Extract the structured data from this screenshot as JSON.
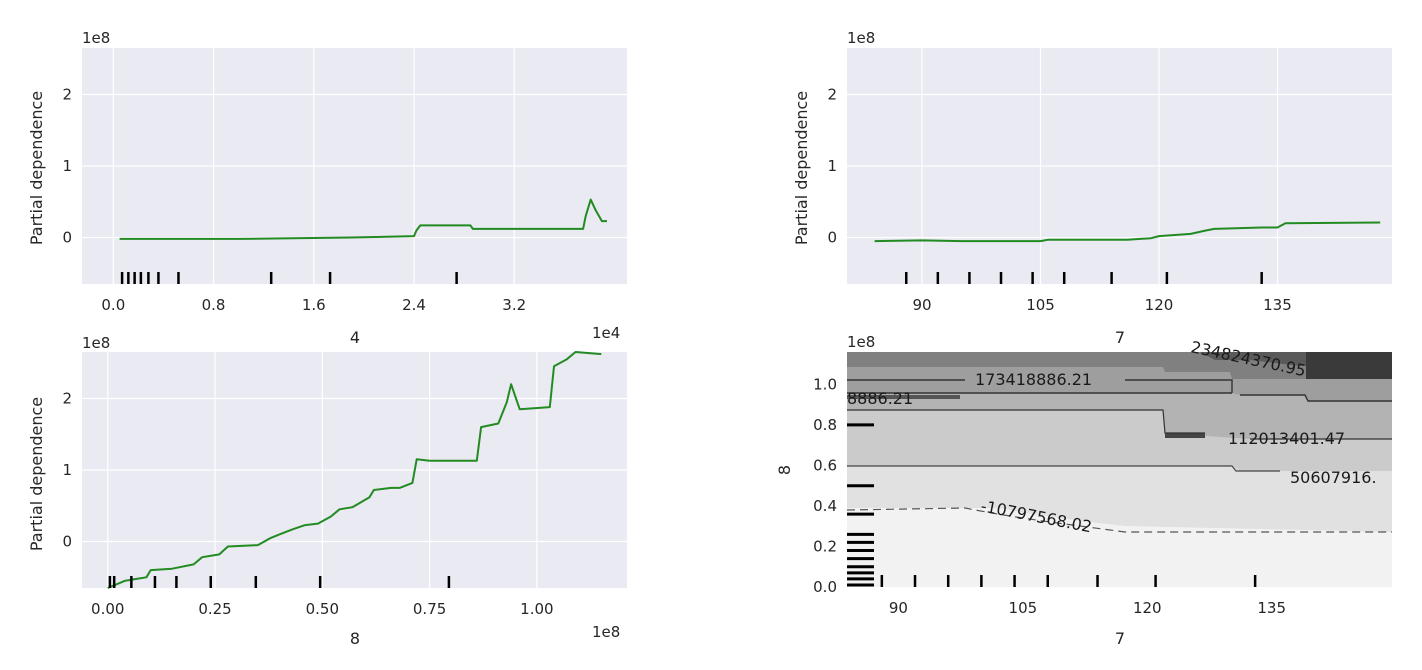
{
  "chart_data": [
    {
      "type": "line",
      "xlabel": "4",
      "ylabel": "Partial dependence",
      "x_multiplier": "1e4",
      "y_multiplier": "1e8",
      "xlim": [
        -0.25,
        4.1
      ],
      "ylim": [
        -0.65,
        2.65
      ],
      "xticks": [
        0.0,
        0.8,
        1.6,
        2.4,
        3.2
      ],
      "xtick_labels": [
        "0.0",
        "0.8",
        "1.6",
        "2.4",
        "3.2"
      ],
      "yticks": [
        0,
        1,
        2
      ],
      "ytick_labels": [
        "0",
        "1",
        "2"
      ],
      "rug": [
        0.07,
        0.12,
        0.17,
        0.22,
        0.28,
        0.36,
        0.52,
        1.26,
        1.73,
        2.74
      ],
      "series": [
        {
          "color": "#228b22",
          "x": [
            0.05,
            1.0,
            1.9,
            2.4,
            2.42,
            2.45,
            2.53,
            2.85,
            2.87,
            3.25,
            3.5,
            3.75,
            3.77,
            3.81,
            3.85,
            3.9,
            3.94
          ],
          "y": [
            -0.02,
            -0.02,
            0.0,
            0.02,
            0.1,
            0.17,
            0.17,
            0.17,
            0.12,
            0.12,
            0.12,
            0.12,
            0.3,
            0.53,
            0.38,
            0.23,
            0.23
          ]
        }
      ],
      "grid": true
    },
    {
      "type": "line",
      "xlabel": "7",
      "ylabel": "Partial dependence",
      "y_multiplier": "1e8",
      "xlim": [
        80.5,
        149.5
      ],
      "ylim": [
        -0.65,
        2.65
      ],
      "xticks": [
        90,
        105,
        120,
        135
      ],
      "xtick_labels": [
        "90",
        "105",
        "120",
        "135"
      ],
      "yticks": [
        0,
        1,
        2
      ],
      "ytick_labels": [
        "0",
        "1",
        "2"
      ],
      "rug": [
        88,
        92,
        96,
        100,
        104,
        108,
        114,
        121,
        133
      ],
      "series": [
        {
          "color": "#228b22",
          "x": [
            84,
            90,
            95,
            105,
            106,
            116,
            119,
            120,
            124,
            126,
            127,
            133,
            135,
            136,
            148
          ],
          "y": [
            -0.05,
            -0.04,
            -0.05,
            -0.05,
            -0.03,
            -0.03,
            -0.01,
            0.02,
            0.05,
            0.1,
            0.12,
            0.14,
            0.14,
            0.2,
            0.21
          ]
        }
      ],
      "grid": true
    },
    {
      "type": "line",
      "xlabel": "8",
      "ylabel": "Partial dependence",
      "x_multiplier": "1e8",
      "y_multiplier": "1e8",
      "xlim": [
        -0.06,
        1.21
      ],
      "ylim": [
        -0.65,
        2.65
      ],
      "xticks": [
        0.0,
        0.25,
        0.5,
        0.75,
        1.0
      ],
      "xtick_labels": [
        "0.00",
        "0.25",
        "0.50",
        "0.75",
        "1.00"
      ],
      "yticks": [
        0,
        1,
        2
      ],
      "ytick_labels": [
        "0",
        "1",
        "2"
      ],
      "rug": [
        0.005,
        0.015,
        0.055,
        0.11,
        0.16,
        0.24,
        0.345,
        0.495,
        0.795
      ],
      "series": [
        {
          "color": "#228b22",
          "x": [
            0.0,
            0.04,
            0.06,
            0.09,
            0.1,
            0.15,
            0.2,
            0.22,
            0.26,
            0.28,
            0.35,
            0.38,
            0.4,
            0.43,
            0.46,
            0.49,
            0.52,
            0.54,
            0.57,
            0.61,
            0.62,
            0.66,
            0.68,
            0.71,
            0.72,
            0.75,
            0.86,
            0.87,
            0.91,
            0.93,
            0.94,
            0.96,
            1.03,
            1.04,
            1.07,
            1.09,
            1.15
          ],
          "y": [
            -0.65,
            -0.55,
            -0.53,
            -0.5,
            -0.4,
            -0.38,
            -0.32,
            -0.22,
            -0.18,
            -0.07,
            -0.05,
            0.05,
            0.1,
            0.17,
            0.23,
            0.25,
            0.35,
            0.45,
            0.48,
            0.62,
            0.72,
            0.75,
            0.75,
            0.82,
            1.15,
            1.13,
            1.13,
            1.6,
            1.65,
            1.95,
            2.2,
            1.85,
            1.88,
            2.45,
            2.55,
            2.65,
            2.62
          ]
        }
      ],
      "grid": true
    },
    {
      "type": "contour",
      "xlabel": "7",
      "ylabel": "8",
      "y_multiplier": "1e8",
      "xlim": [
        83.8,
        149.5
      ],
      "ylim": [
        0.0,
        1.16
      ],
      "xticks": [
        90,
        105,
        120,
        135
      ],
      "xtick_labels": [
        "90",
        "105",
        "120",
        "135"
      ],
      "yticks": [
        0.0,
        0.2,
        0.4,
        0.6,
        0.8,
        1.0
      ],
      "ytick_labels": [
        "0.0",
        "0.2",
        "0.4",
        "0.6",
        "0.8",
        "1.0"
      ],
      "rug_x": [
        88,
        92,
        96,
        100,
        104,
        108,
        114,
        121,
        133
      ],
      "rug_y": [
        0.01,
        0.04,
        0.07,
        0.1,
        0.14,
        0.18,
        0.22,
        0.26,
        0.36,
        0.5,
        0.8
      ],
      "contour_labels": [
        "173418886.21",
        "8886.21",
        "234824370.95",
        "112013401.47",
        "50607916.",
        "-10797568.02"
      ]
    }
  ]
}
